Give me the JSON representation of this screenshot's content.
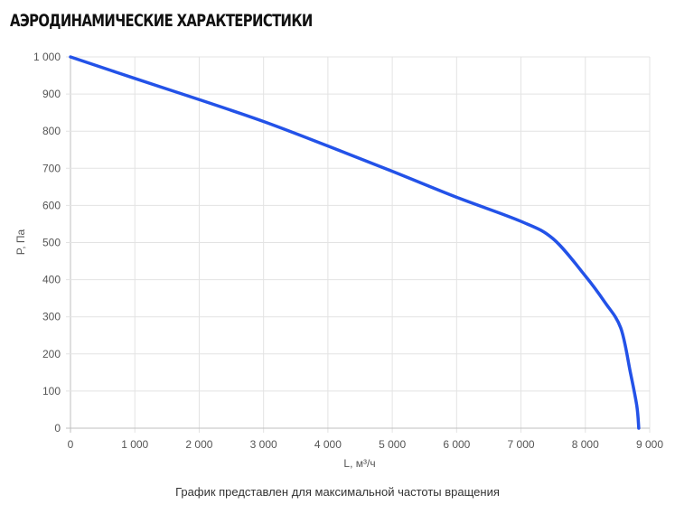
{
  "title": "АЭРОДИНАМИЧЕСКИЕ ХАРАКТЕРИСТИКИ",
  "footnote": "График представлен для максимальной частоты вращения",
  "colors": {
    "line": "#2352e8",
    "grid": "#e3e3e3",
    "axis": "#bfbfbf"
  },
  "chart_data": {
    "type": "line",
    "title": "",
    "xlabel": "L, м³/ч",
    "ylabel": "P, Па",
    "xlim": [
      0,
      9000
    ],
    "ylim": [
      0,
      1000
    ],
    "xticks": [
      0,
      1000,
      2000,
      3000,
      4000,
      5000,
      6000,
      7000,
      8000,
      9000
    ],
    "xtick_labels": [
      "0",
      "1 000",
      "2 000",
      "3 000",
      "4 000",
      "5 000",
      "6 000",
      "7 000",
      "8 000",
      "9 000"
    ],
    "yticks": [
      0,
      100,
      200,
      300,
      400,
      500,
      600,
      700,
      800,
      900,
      1000
    ],
    "ytick_labels": [
      "0",
      "100",
      "200",
      "300",
      "400",
      "500",
      "600",
      "700",
      "800",
      "900",
      "1 000"
    ],
    "grid": true,
    "series": [
      {
        "x": [
          0,
          1000,
          2000,
          3000,
          4000,
          5000,
          6000,
          7000,
          7500,
          8000,
          8300,
          8550,
          8700,
          8800,
          8830
        ],
        "y": [
          1000,
          942,
          885,
          826,
          760,
          692,
          622,
          557,
          510,
          410,
          340,
          270,
          150,
          60,
          0
        ]
      }
    ]
  }
}
